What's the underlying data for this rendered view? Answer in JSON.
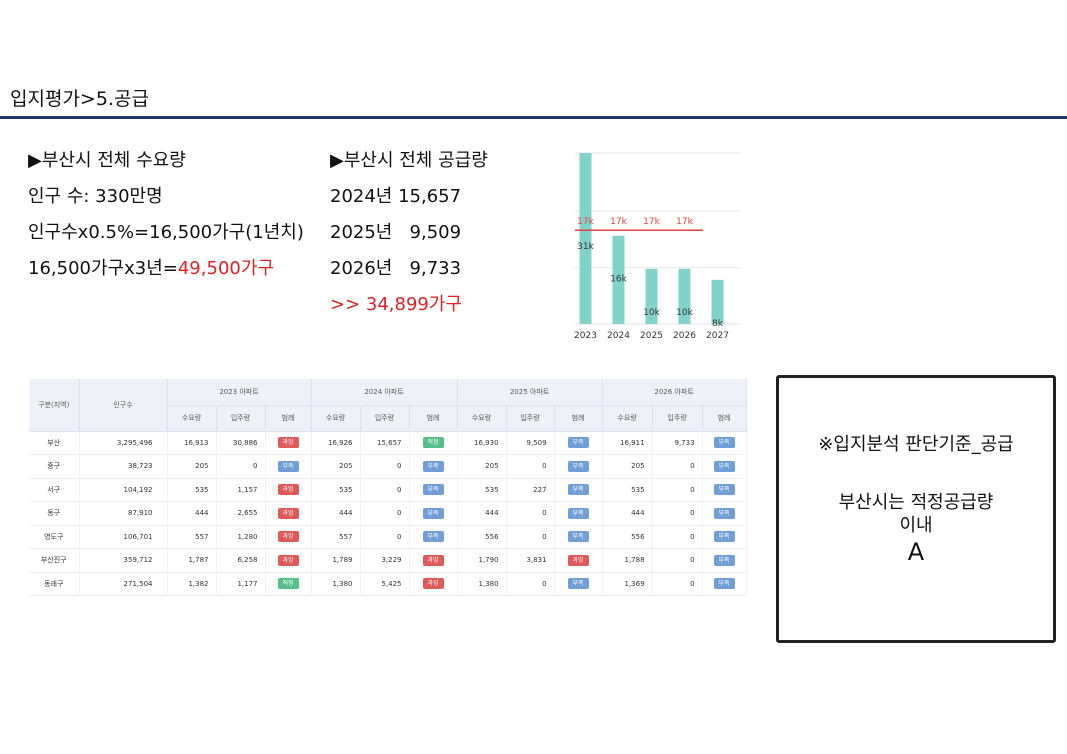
{
  "header": {
    "title": "입지평가>5.공급"
  },
  "demand": {
    "heading": "▶부산시 전체 수요량",
    "line1": "인구 수: 330만명",
    "line2": "인구수x0.5%=16,500가구(1년치)",
    "line3_prefix": "16,500가구x3년=",
    "line3_value": "49,500가구"
  },
  "supply": {
    "heading": "▶부산시 전체 공급량",
    "line1": "2024년 15,657",
    "line2": "2025년   9,509",
    "line3": "2026년   9,733",
    "total": ">> 34,899가구"
  },
  "chart_data": {
    "type": "bar",
    "categories": [
      "2023",
      "2024",
      "2025",
      "2026",
      "2027"
    ],
    "values": [
      31,
      16,
      10,
      10,
      8
    ],
    "data_labels": [
      "31k",
      "16k",
      "10k",
      "10k",
      "8k"
    ],
    "reference_line": {
      "value": 17,
      "labels": [
        "17k",
        "17k",
        "17k",
        "17k"
      ],
      "color": "#e04040"
    },
    "ylim": [
      0,
      31
    ],
    "bar_color": "#7fd3c9",
    "grid": true
  },
  "table": {
    "col_region": "구분(지역)",
    "col_population": "인구수",
    "years": [
      "2023 아파트",
      "2024 아파트",
      "2025 아파트",
      "2026 아파트"
    ],
    "subcols": [
      "수요량",
      "입주량",
      "범례"
    ],
    "rows": [
      {
        "region": "부산",
        "population": "3,295,496",
        "data": [
          [
            "16,913",
            "30,886",
            "과잉"
          ],
          [
            "16,926",
            "15,657",
            "적정"
          ],
          [
            "16,930",
            "9,509",
            "부족"
          ],
          [
            "16,911",
            "9,733",
            "부족"
          ]
        ]
      },
      {
        "region": "중구",
        "population": "38,723",
        "data": [
          [
            "205",
            "0",
            "부족"
          ],
          [
            "205",
            "0",
            "부족"
          ],
          [
            "205",
            "0",
            "부족"
          ],
          [
            "205",
            "0",
            "부족"
          ]
        ]
      },
      {
        "region": "서구",
        "population": "104,192",
        "data": [
          [
            "535",
            "1,157",
            "과잉"
          ],
          [
            "535",
            "0",
            "부족"
          ],
          [
            "535",
            "227",
            "부족"
          ],
          [
            "535",
            "0",
            "부족"
          ]
        ]
      },
      {
        "region": "동구",
        "population": "87,910",
        "data": [
          [
            "444",
            "2,655",
            "과잉"
          ],
          [
            "444",
            "0",
            "부족"
          ],
          [
            "444",
            "0",
            "부족"
          ],
          [
            "444",
            "0",
            "부족"
          ]
        ]
      },
      {
        "region": "영도구",
        "population": "106,701",
        "data": [
          [
            "557",
            "1,280",
            "과잉"
          ],
          [
            "557",
            "0",
            "부족"
          ],
          [
            "556",
            "0",
            "부족"
          ],
          [
            "556",
            "0",
            "부족"
          ]
        ]
      },
      {
        "region": "부산진구",
        "population": "359,712",
        "data": [
          [
            "1,787",
            "6,258",
            "과잉"
          ],
          [
            "1,789",
            "3,229",
            "과잉"
          ],
          [
            "1,790",
            "3,831",
            "과잉"
          ],
          [
            "1,788",
            "0",
            "부족"
          ]
        ]
      },
      {
        "region": "동래구",
        "population": "271,504",
        "data": [
          [
            "1,382",
            "1,177",
            "적정"
          ],
          [
            "1,380",
            "5,425",
            "과잉"
          ],
          [
            "1,380",
            "0",
            "부족"
          ],
          [
            "1,369",
            "0",
            "부족"
          ]
        ]
      }
    ],
    "badge_colors": {
      "부족": "#6f9fd6",
      "과잉": "#e05a5a",
      "적정": "#55bf8a"
    }
  },
  "criteria": {
    "title": "※입지분석 판단기준_공급",
    "body_line1": "부산시는 적정공급량",
    "body_line2": "이내",
    "grade": "A"
  }
}
